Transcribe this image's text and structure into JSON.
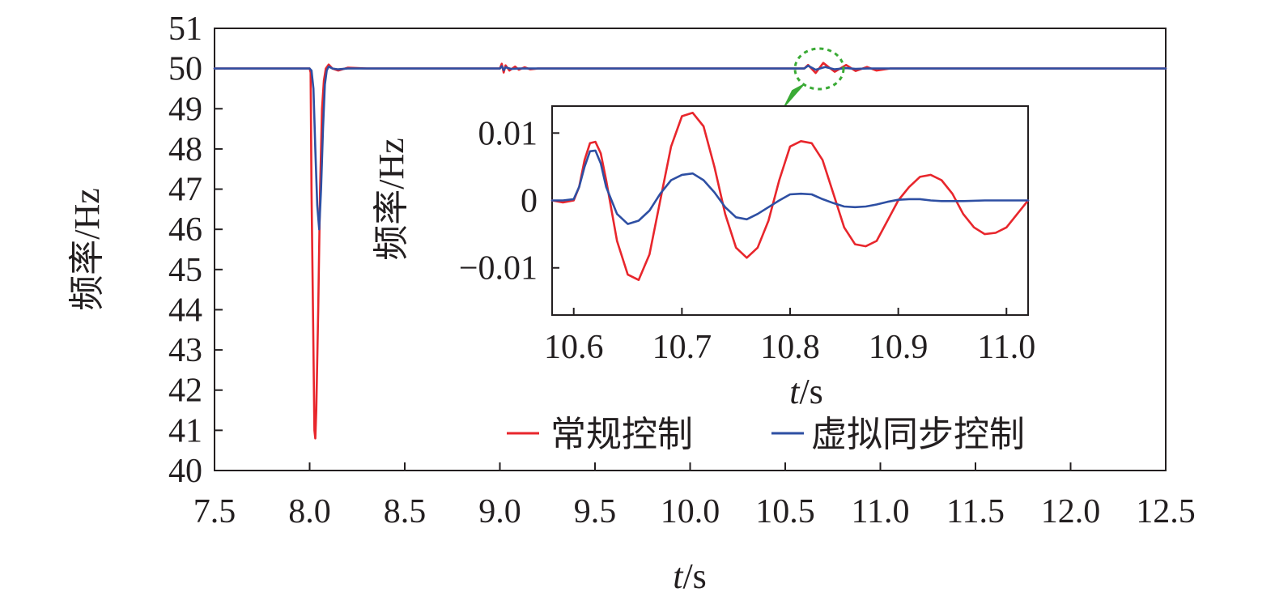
{
  "chart_data": [
    {
      "type": "line",
      "xlabel_italic": "t",
      "xlabel_unit": "/s",
      "ylabel": "频率/Hz",
      "xlim": [
        7.5,
        12.5
      ],
      "ylim": [
        40,
        51
      ],
      "xticks": [
        "7.5",
        "8.0",
        "8.5",
        "9.0",
        "9.5",
        "10.0",
        "10.5",
        "11.0",
        "11.5",
        "12.0",
        "12.5"
      ],
      "yticks": [
        "40",
        "41",
        "42",
        "43",
        "44",
        "45",
        "46",
        "47",
        "48",
        "49",
        "50",
        "51"
      ],
      "legend_position": "bottom-right",
      "series": [
        {
          "name": "常规控制",
          "color": "#e8262c",
          "x": [
            7.5,
            8.0,
            8.005,
            8.01,
            8.02,
            8.025,
            8.03,
            8.035,
            8.045,
            8.055,
            8.065,
            8.075,
            8.085,
            8.1,
            8.12,
            8.15,
            8.2,
            8.3,
            9.0,
            9.01,
            9.02,
            9.03,
            9.05,
            9.08,
            9.1,
            9.13,
            9.16,
            9.2,
            10.5,
            10.6,
            10.62,
            10.66,
            10.7,
            10.76,
            10.82,
            10.87,
            10.93,
            10.98,
            11.05,
            12.5
          ],
          "y": [
            50.0,
            50.0,
            49.9,
            47.0,
            43.0,
            41.0,
            40.8,
            41.5,
            44.0,
            47.0,
            49.0,
            49.7,
            50.0,
            50.1,
            50.0,
            49.95,
            50.02,
            50.0,
            50.0,
            50.12,
            49.9,
            50.08,
            49.95,
            50.05,
            49.97,
            50.03,
            49.98,
            50.0,
            50.0,
            50.0,
            50.09,
            49.89,
            50.14,
            49.92,
            50.09,
            49.94,
            50.04,
            49.95,
            50.0,
            50.0
          ]
        },
        {
          "name": "虚拟同步控制",
          "color": "#2e4fa3",
          "x": [
            7.5,
            8.0,
            8.01,
            8.02,
            8.03,
            8.04,
            8.05,
            8.06,
            8.07,
            8.08,
            8.09,
            8.1,
            8.12,
            8.15,
            8.2,
            9.0,
            9.01,
            9.02,
            9.03,
            9.06,
            9.1,
            10.5,
            10.6,
            10.62,
            10.66,
            10.71,
            10.76,
            10.82,
            10.87,
            10.93,
            11.0,
            12.5
          ],
          "y": [
            50.0,
            50.0,
            49.95,
            49.5,
            48.0,
            46.6,
            46.0,
            47.0,
            48.5,
            49.6,
            49.95,
            50.05,
            50.0,
            49.98,
            50.0,
            50.0,
            50.06,
            49.96,
            50.03,
            49.99,
            50.0,
            50.0,
            50.0,
            50.07,
            49.97,
            50.04,
            49.98,
            50.01,
            49.99,
            50.0,
            50.0,
            50.0
          ]
        }
      ]
    },
    {
      "type": "line",
      "inset": true,
      "xlabel_italic": "t",
      "xlabel_unit": "/s",
      "ylabel": "频率/Hz",
      "xlim": [
        10.58,
        11.02
      ],
      "ylim": [
        -0.017,
        0.014
      ],
      "xticks": [
        "10.6",
        "10.7",
        "10.8",
        "10.9",
        "11.0"
      ],
      "yticks": [
        "0.01",
        "0",
        "−0.01"
      ],
      "series": [
        {
          "name": "常规控制",
          "color": "#e8262c",
          "x": [
            10.58,
            10.59,
            10.6,
            10.605,
            10.61,
            10.615,
            10.62,
            10.625,
            10.63,
            10.64,
            10.65,
            10.66,
            10.67,
            10.68,
            10.69,
            10.7,
            10.71,
            10.72,
            10.73,
            10.74,
            10.75,
            10.76,
            10.77,
            10.78,
            10.79,
            10.8,
            10.81,
            10.82,
            10.83,
            10.84,
            10.85,
            10.86,
            10.87,
            10.88,
            10.89,
            10.9,
            10.91,
            10.92,
            10.93,
            10.94,
            10.95,
            10.96,
            10.97,
            10.98,
            10.99,
            11.0,
            11.01,
            11.02
          ],
          "y": [
            0.0,
            -0.0003,
            0.0,
            0.002,
            0.006,
            0.0085,
            0.0087,
            0.007,
            0.003,
            -0.006,
            -0.011,
            -0.0118,
            -0.008,
            0.0,
            0.008,
            0.0125,
            0.013,
            0.011,
            0.005,
            -0.002,
            -0.007,
            -0.0085,
            -0.007,
            -0.003,
            0.003,
            0.008,
            0.0088,
            0.0085,
            0.006,
            0.001,
            -0.004,
            -0.0065,
            -0.0068,
            -0.006,
            -0.003,
            0.0,
            0.002,
            0.0035,
            0.0038,
            0.003,
            0.001,
            -0.002,
            -0.004,
            -0.005,
            -0.0048,
            -0.004,
            -0.002,
            0.0
          ]
        },
        {
          "name": "虚拟同步控制",
          "color": "#2e4fa3",
          "x": [
            10.58,
            10.59,
            10.6,
            10.605,
            10.61,
            10.615,
            10.62,
            10.625,
            10.63,
            10.64,
            10.65,
            10.66,
            10.67,
            10.68,
            10.69,
            10.7,
            10.71,
            10.72,
            10.73,
            10.74,
            10.75,
            10.76,
            10.77,
            10.78,
            10.79,
            10.8,
            10.81,
            10.82,
            10.83,
            10.84,
            10.85,
            10.86,
            10.87,
            10.88,
            10.89,
            10.9,
            10.91,
            10.92,
            10.93,
            10.94,
            10.96,
            10.98,
            11.0,
            11.02
          ],
          "y": [
            0.0,
            0.0,
            0.0002,
            0.002,
            0.005,
            0.0073,
            0.0074,
            0.0055,
            0.002,
            -0.002,
            -0.0035,
            -0.003,
            -0.0015,
            0.001,
            0.003,
            0.0038,
            0.004,
            0.003,
            0.0012,
            -0.001,
            -0.0025,
            -0.0028,
            -0.002,
            -0.001,
            0.0,
            0.0009,
            0.001,
            0.0009,
            0.0002,
            -0.0004,
            -0.0009,
            -0.001,
            -0.0009,
            -0.0006,
            -0.0002,
            0.0001,
            0.0002,
            0.0002,
            0.0,
            -0.0001,
            -0.0001,
            0.0,
            0.0,
            0.0
          ]
        }
      ]
    }
  ]
}
